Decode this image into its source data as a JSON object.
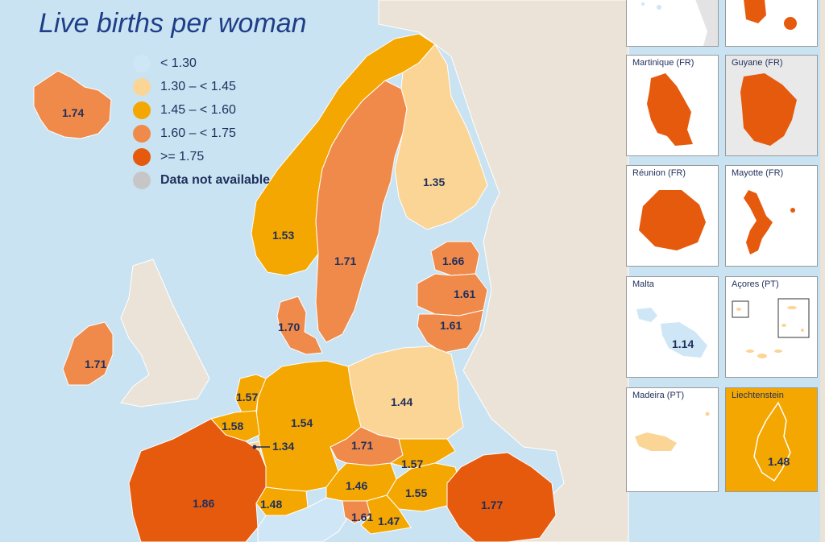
{
  "title": "Live births per woman",
  "legend": [
    {
      "label": "< 1.30",
      "color": "#cfe6f6"
    },
    {
      "label": "1.30 – < 1.45",
      "color": "#fbd596"
    },
    {
      "label": "1.45 – < 1.60",
      "color": "#f4a700"
    },
    {
      "label": "1.60 – < 1.75",
      "color": "#ef8a4a"
    },
    {
      "label": ">= 1.75",
      "color": "#e65a0e"
    },
    {
      "label": "Data not available",
      "color": "#c6c6c6"
    }
  ],
  "regions": {
    "iceland": "1.74",
    "norway": "1.53",
    "sweden": "1.71",
    "finland": "1.35",
    "estonia": "1.66",
    "latvia": "1.61",
    "lithuania": "1.61",
    "denmark": "1.70",
    "ireland": "1.71",
    "netherlands": "1.57",
    "belgium": "1.58",
    "luxembourg": "1.34",
    "germany": "1.54",
    "poland": "1.44",
    "czechia": "1.71",
    "slovakia": "1.57",
    "austria": "1.46",
    "hungary": "1.55",
    "romania": "1.77",
    "france": "1.86",
    "switzerland": "1.48",
    "slovenia": "1.61",
    "croatia": "1.47"
  },
  "insets": [
    {
      "label": "Martinique (FR)"
    },
    {
      "label": "Guyane (FR)"
    },
    {
      "label": "Réunion (FR)"
    },
    {
      "label": "Mayotte (FR)"
    },
    {
      "label": "Malta",
      "value": "1.14"
    },
    {
      "label": "Açores (PT)"
    },
    {
      "label": "Madeira (PT)"
    },
    {
      "label": "Liechtenstein",
      "value": "1.48"
    }
  ]
}
